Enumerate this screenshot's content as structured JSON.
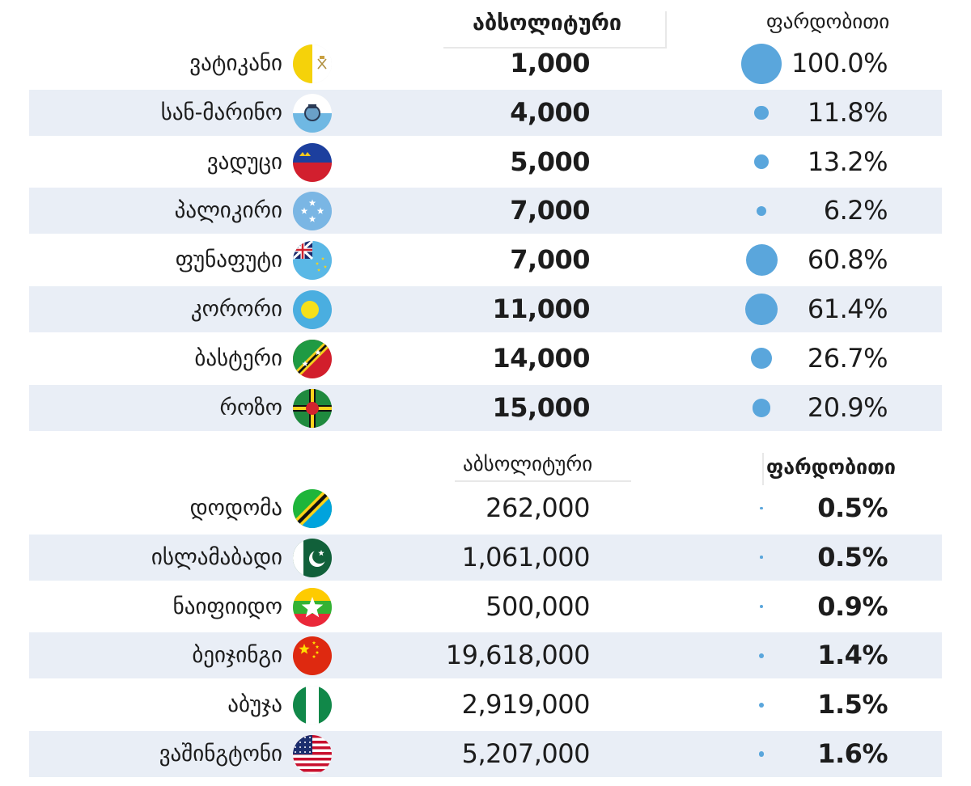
{
  "chart_data": [
    {
      "type": "table",
      "columns": {
        "absolute": "აბსოლიტური",
        "relative": "ფარდობითი"
      },
      "rows": [
        {
          "city": "ვატიკანი",
          "flag": "vatican-flag-icon",
          "absolute": "1,000",
          "relative": "100.0%",
          "relative_value": 100.0
        },
        {
          "city": "სან-მარინო",
          "flag": "san-marino-flag-icon",
          "absolute": "4,000",
          "relative": "11.8%",
          "relative_value": 11.8
        },
        {
          "city": "ვადუცი",
          "flag": "liechtenstein-flag-icon",
          "absolute": "5,000",
          "relative": "13.2%",
          "relative_value": 13.2
        },
        {
          "city": "პალიკირი",
          "flag": "micronesia-flag-icon",
          "absolute": "7,000",
          "relative": "6.2%",
          "relative_value": 6.2
        },
        {
          "city": "ფუნაფუტი",
          "flag": "tuvalu-flag-icon",
          "absolute": "7,000",
          "relative": "60.8%",
          "relative_value": 60.8
        },
        {
          "city": "კორორი",
          "flag": "palau-flag-icon",
          "absolute": "11,000",
          "relative": "61.4%",
          "relative_value": 61.4
        },
        {
          "city": "ბასტერი",
          "flag": "saint-kitts-flag-icon",
          "absolute": "14,000",
          "relative": "26.7%",
          "relative_value": 26.7
        },
        {
          "city": "როზო",
          "flag": "dominica-flag-icon",
          "absolute": "15,000",
          "relative": "20.9%",
          "relative_value": 20.9
        }
      ]
    },
    {
      "type": "table",
      "columns": {
        "absolute": "აბსოლიტური",
        "relative": "ფარდობითი"
      },
      "rows": [
        {
          "city": "დოდომა",
          "flag": "tanzania-flag-icon",
          "absolute": "262,000",
          "relative": "0.5%",
          "relative_value": 0.5
        },
        {
          "city": "ისლამაბადი",
          "flag": "pakistan-flag-icon",
          "absolute": "1,061,000",
          "relative": "0.5%",
          "relative_value": 0.5
        },
        {
          "city": "ნაიფიიდო",
          "flag": "myanmar-flag-icon",
          "absolute": "500,000",
          "relative": "0.9%",
          "relative_value": 0.9
        },
        {
          "city": "ბეიჯინგი",
          "flag": "china-flag-icon",
          "absolute": "19,618,000",
          "relative": "1.4%",
          "relative_value": 1.4
        },
        {
          "city": "აბუჯა",
          "flag": "nigeria-flag-icon",
          "absolute": "2,919,000",
          "relative": "1.5%",
          "relative_value": 1.5
        },
        {
          "city": "ვაშინგტონი",
          "flag": "usa-flag-icon",
          "absolute": "5,207,000",
          "relative": "1.6%",
          "relative_value": 1.6
        }
      ]
    }
  ],
  "colors": {
    "dot": "#5aa6dc",
    "row_shade": "#e9eef6"
  }
}
